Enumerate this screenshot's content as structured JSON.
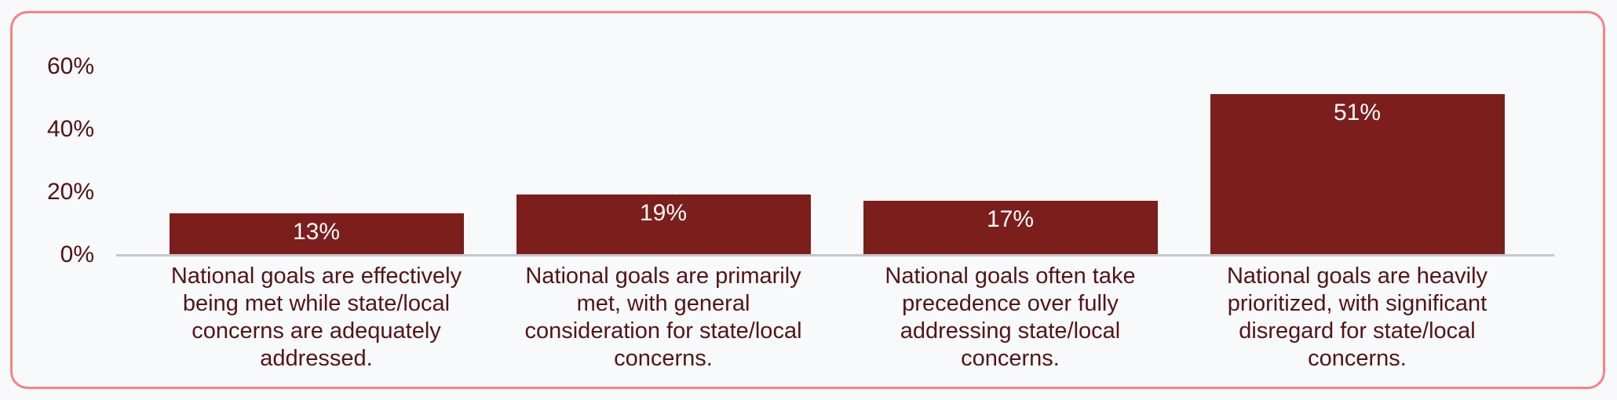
{
  "card": {
    "border_color": "#f5837e",
    "background": "#f8f9fb"
  },
  "chart_data": {
    "type": "bar",
    "title": "",
    "xlabel": "",
    "ylabel": "",
    "categories": [
      "National goals are effectively being met while state/local concerns are adequately addressed.",
      "National goals are primarily met, with general consideration for state/local concerns.",
      "National goals often take precedence over fully addressing state/local concerns.",
      "National goals are heavily prioritized, with significant disregard for state/local concerns."
    ],
    "category_lines": [
      [
        "National goals are effectively",
        "being met while state/local",
        "concerns are adequately",
        "addressed."
      ],
      [
        "National goals are primarily",
        "met, with general",
        "consideration for state/local",
        "concerns."
      ],
      [
        "National goals often take",
        "precedence over fully",
        "addressing state/local",
        "concerns."
      ],
      [
        "National goals are heavily",
        "prioritized, with significant",
        "disregard for state/local",
        "concerns."
      ]
    ],
    "values": [
      13,
      19,
      17,
      51
    ],
    "value_labels": [
      "13%",
      "19%",
      "17%",
      "51%"
    ],
    "ylim": [
      0,
      60
    ],
    "yticks": [
      {
        "label": "0%",
        "value": 0
      },
      {
        "label": "20%",
        "value": 20
      },
      {
        "label": "40%",
        "value": 40
      },
      {
        "label": "60%",
        "value": 60
      }
    ],
    "grid": false,
    "legend_position": "none",
    "colors": {
      "bar": "#7b1e1c",
      "value_label": "#ffffff",
      "tick_text": "#4e1316",
      "category_text": "#511518",
      "baseline": "#c7c8ca"
    }
  }
}
